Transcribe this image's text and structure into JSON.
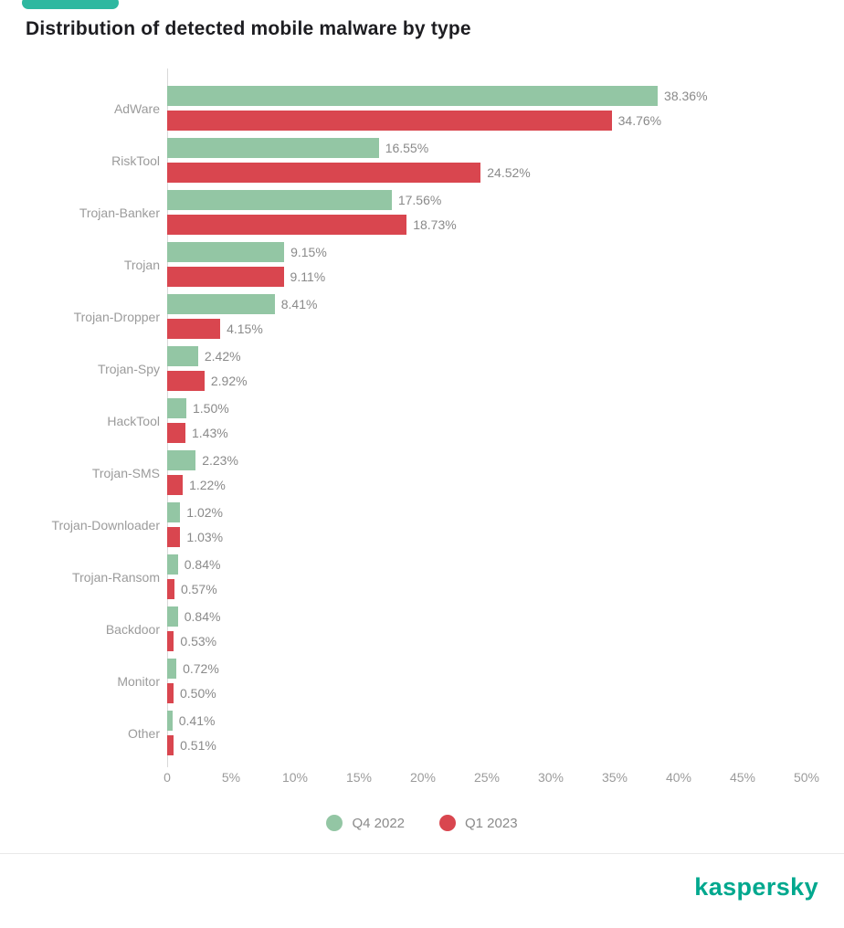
{
  "brand": {
    "wordmark": "kaspersky"
  },
  "chart_data": {
    "type": "bar",
    "orientation": "horizontal",
    "title": "Distribution of detected mobile malware by type",
    "xlabel": "",
    "ylabel": "",
    "xlim": [
      0,
      50
    ],
    "x_ticks": [
      "0",
      "5%",
      "10%",
      "15%",
      "20%",
      "25%",
      "30%",
      "35%",
      "40%",
      "45%",
      "50%"
    ],
    "grid": false,
    "legend_position": "bottom",
    "categories": [
      "AdWare",
      "RiskTool",
      "Trojan-Banker",
      "Trojan",
      "Trojan-Dropper",
      "Trojan-Spy",
      "HackTool",
      "Trojan-SMS",
      "Trojan-Downloader",
      "Trojan-Ransom",
      "Backdoor",
      "Monitor",
      "Other"
    ],
    "series": [
      {
        "name": "Q4 2022",
        "color": "#93c6a4",
        "values": [
          38.36,
          16.55,
          17.56,
          9.15,
          8.41,
          2.42,
          1.5,
          2.23,
          1.02,
          0.84,
          0.84,
          0.72,
          0.41
        ]
      },
      {
        "name": "Q1 2023",
        "color": "#d9464f",
        "values": [
          34.76,
          24.52,
          18.73,
          9.11,
          4.15,
          2.92,
          1.43,
          1.22,
          1.03,
          0.57,
          0.53,
          0.5,
          0.51
        ]
      }
    ],
    "legend": [
      {
        "label": "Q4 2022",
        "color": "#93c6a4"
      },
      {
        "label": "Q1 2023",
        "color": "#d9464f"
      }
    ]
  }
}
